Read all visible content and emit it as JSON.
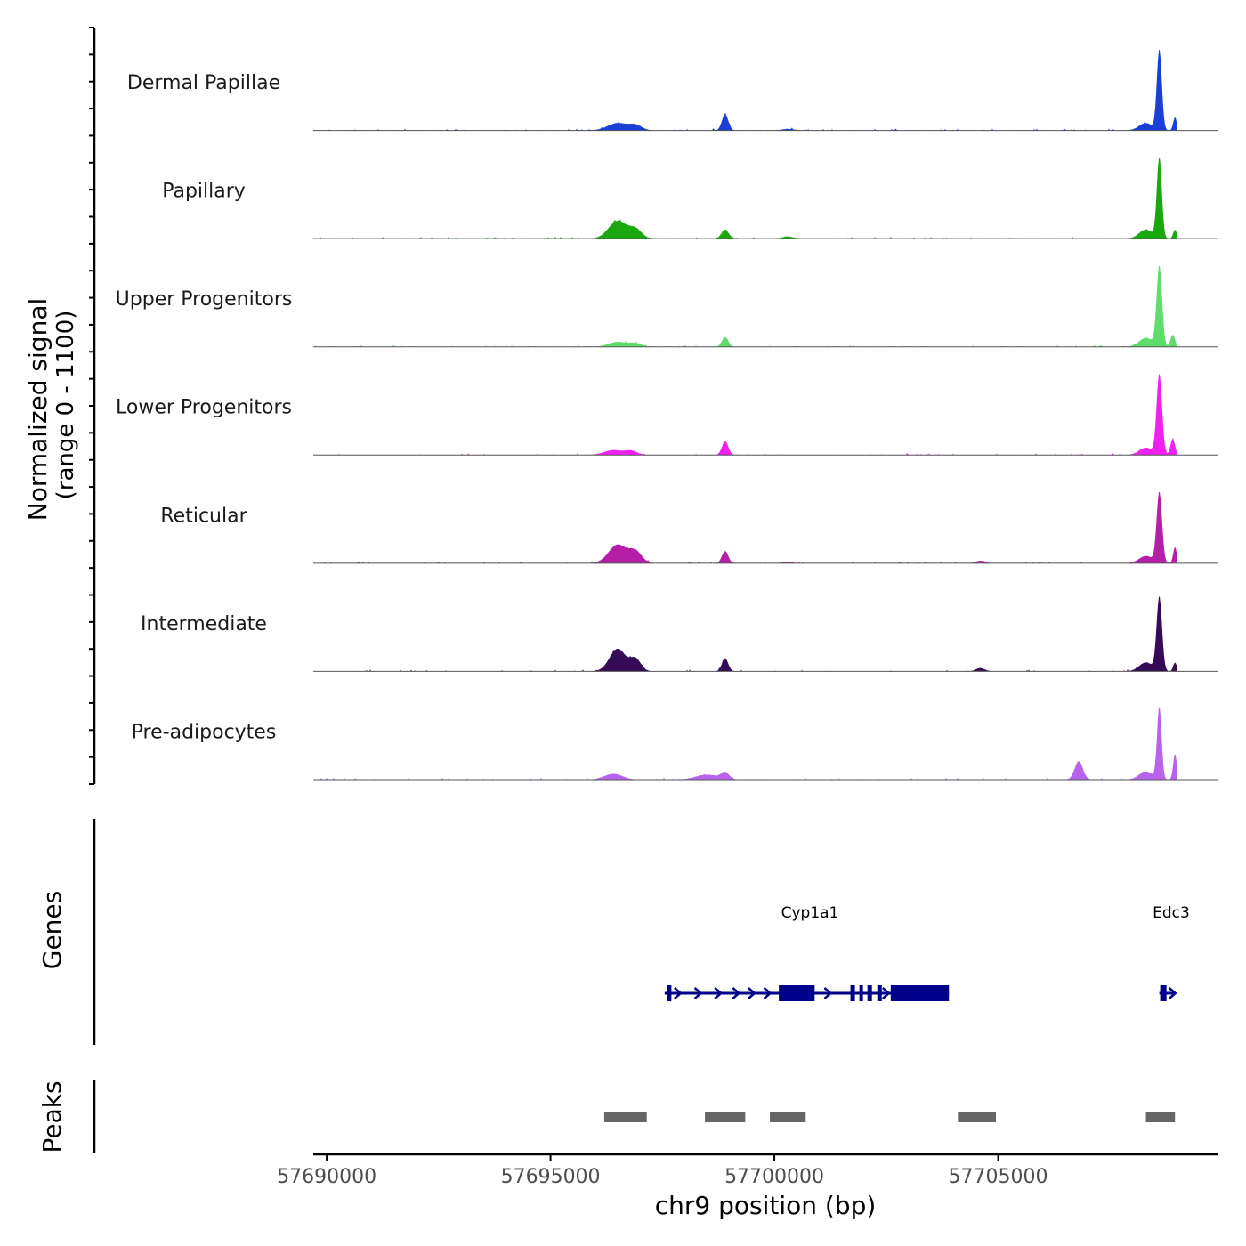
{
  "chart_data": {
    "type": "area",
    "title": "",
    "ylabel_line1": "Normalized signal",
    "ylabel_line2": "(range 0 - 1100)",
    "y_range": [
      0,
      1100
    ],
    "xlabel": "chr9 position (bp)",
    "xlim": [
      57689700,
      57709900
    ],
    "x_ticks": [
      57690000,
      57695000,
      57700000,
      57705000
    ],
    "x_tick_labels": [
      "57690000",
      "57695000",
      "57700000",
      "57705000"
    ],
    "peak_centers": [
      57696600,
      57698900,
      57708700
    ],
    "tracks": [
      {
        "name": "Dermal Papillae",
        "color": "#1a3fd6",
        "peaks": [
          [
            57696500,
            90,
            220
          ],
          [
            57696900,
            60,
            140
          ],
          [
            57698900,
            200,
            70
          ],
          [
            57700300,
            18,
            120
          ],
          [
            57708600,
            1000,
            55
          ],
          [
            57708300,
            90,
            150
          ],
          [
            57708950,
            160,
            40
          ]
        ]
      },
      {
        "name": "Papillary",
        "color": "#1aa80f",
        "peaks": [
          [
            57696500,
            220,
            200
          ],
          [
            57696900,
            110,
            140
          ],
          [
            57698900,
            110,
            80
          ],
          [
            57700300,
            25,
            120
          ],
          [
            57708600,
            1000,
            55
          ],
          [
            57708300,
            110,
            150
          ],
          [
            57708950,
            110,
            40
          ]
        ]
      },
      {
        "name": "Upper Progenitors",
        "color": "#5fdc6a",
        "peaks": [
          [
            57696500,
            60,
            200
          ],
          [
            57696900,
            40,
            140
          ],
          [
            57698900,
            120,
            70
          ],
          [
            57708600,
            1000,
            60
          ],
          [
            57708300,
            110,
            150
          ],
          [
            57708900,
            150,
            50
          ]
        ]
      },
      {
        "name": "Lower Progenitors",
        "color": "#f020f0",
        "peaks": [
          [
            57696400,
            60,
            200
          ],
          [
            57696800,
            50,
            140
          ],
          [
            57698900,
            170,
            70
          ],
          [
            57708600,
            1000,
            60
          ],
          [
            57708300,
            90,
            150
          ],
          [
            57708900,
            200,
            50
          ]
        ]
      },
      {
        "name": "Reticular",
        "color": "#b51fa8",
        "peaks": [
          [
            57696500,
            230,
            200
          ],
          [
            57696900,
            140,
            140
          ],
          [
            57698900,
            150,
            70
          ],
          [
            57700300,
            20,
            100
          ],
          [
            57704600,
            30,
            100
          ],
          [
            57708600,
            880,
            60
          ],
          [
            57708300,
            90,
            150
          ],
          [
            57708950,
            200,
            40
          ]
        ]
      },
      {
        "name": "Intermediate",
        "color": "#350a57",
        "peaks": [
          [
            57696500,
            280,
            180
          ],
          [
            57696900,
            150,
            120
          ],
          [
            57698900,
            160,
            70
          ],
          [
            57704600,
            40,
            100
          ],
          [
            57708600,
            920,
            60
          ],
          [
            57708300,
            110,
            150
          ],
          [
            57708950,
            110,
            40
          ]
        ]
      },
      {
        "name": "Pre-adipocytes",
        "color": "#b862ee",
        "peaks": [
          [
            57696400,
            70,
            200
          ],
          [
            57698500,
            60,
            250
          ],
          [
            57698900,
            80,
            90
          ],
          [
            57706800,
            230,
            90
          ],
          [
            57708600,
            900,
            50
          ],
          [
            57708300,
            100,
            150
          ],
          [
            57708950,
            320,
            40
          ]
        ]
      }
    ],
    "genes": [
      {
        "name": "Cyp1a1",
        "start": 57697550,
        "end": 57703900,
        "exons": [
          [
            57697600,
            57697700
          ],
          [
            57700100,
            57700900
          ],
          [
            57701700,
            57701800
          ],
          [
            57701900,
            57701980
          ],
          [
            57702080,
            57702180
          ],
          [
            57702300,
            57702400
          ],
          [
            57702600,
            57703900
          ]
        ],
        "arrows": [
          57697850,
          57698300,
          57698750,
          57699150,
          57699500,
          57699850,
          57701200,
          57702500
        ]
      },
      {
        "name": "Edc3",
        "start": 57708600,
        "end": 57708950,
        "exons": [
          [
            57708620,
            57708760
          ]
        ],
        "arrows": [
          57708900
        ]
      }
    ],
    "peaks": [
      [
        57696200,
        57697150
      ],
      [
        57698450,
        57699350
      ],
      [
        57699900,
        57700700
      ],
      [
        57704100,
        57704950
      ],
      [
        57708300,
        57708950
      ]
    ],
    "panel_labels": {
      "genes": "Genes",
      "peaks": "Peaks"
    }
  },
  "colors": {
    "gene": "#00008b",
    "peak": "#666666",
    "axis": "#000000",
    "baseline": "#555555"
  }
}
